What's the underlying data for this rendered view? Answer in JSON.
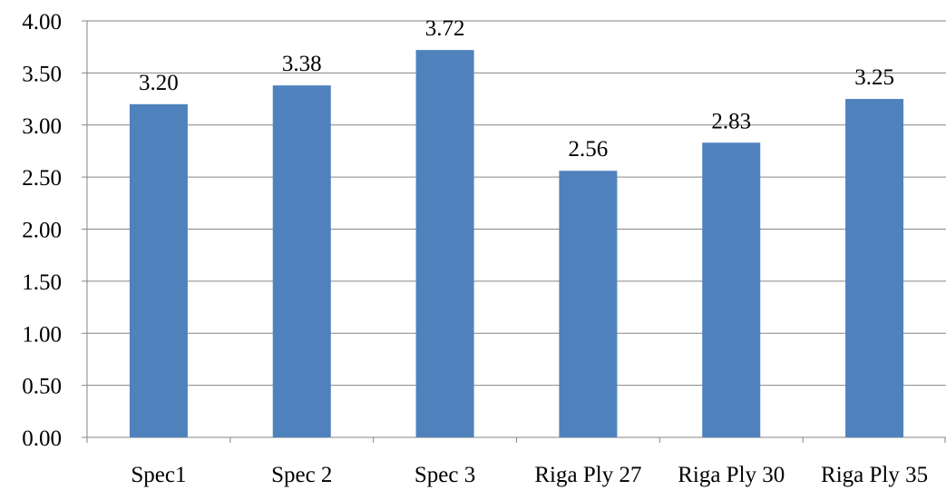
{
  "chart_data": {
    "type": "bar",
    "categories": [
      "Spec1",
      "Spec 2",
      "Spec 3",
      "Riga Ply 27",
      "Riga Ply 30",
      "Riga Ply 35"
    ],
    "values": [
      3.2,
      3.38,
      3.72,
      2.56,
      2.83,
      3.25
    ],
    "value_labels": [
      "3.20",
      "3.38",
      "3.72",
      "2.56",
      "2.83",
      "3.25"
    ],
    "y_ticks": [
      "0.00",
      "0.50",
      "1.00",
      "1.50",
      "2.00",
      "2.50",
      "3.00",
      "3.50",
      "4.00"
    ],
    "ylim": [
      0,
      4
    ],
    "grid": true,
    "legend": "none",
    "title": "",
    "xlabel": "",
    "ylabel": "",
    "colors": {
      "bar": "#4F81BD",
      "grid": "#868686",
      "axis": "#868686"
    }
  }
}
